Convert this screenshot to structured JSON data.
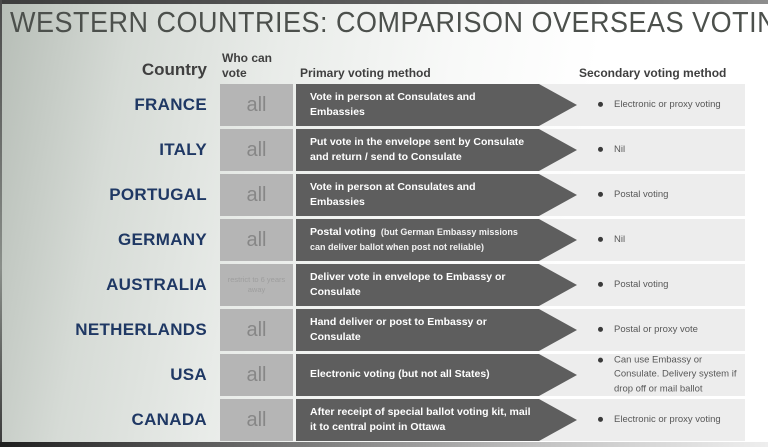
{
  "title": "WESTERN COUNTRIES: COMPARISON OVERSEAS VOTING",
  "columns": {
    "country": "Country",
    "who": "Who can vote",
    "primary": "Primary voting method",
    "secondary": "Secondary voting method"
  },
  "rows": [
    {
      "country": "FRANCE",
      "who": "all",
      "primary": "Vote in person at Consulates and Embassies",
      "secondary": "Electronic or proxy voting"
    },
    {
      "country": "ITALY",
      "who": "all",
      "primary": "Put vote in the envelope sent by Consulate and return / send to Consulate",
      "secondary": "Nil"
    },
    {
      "country": "PORTUGAL",
      "who": "all",
      "primary": "Vote in person at Consulates and Embassies",
      "secondary": "Postal voting"
    },
    {
      "country": "GERMANY",
      "who": "all",
      "primary": "Postal voting",
      "primary_note": "(but German Embassy missions can deliver ballot when post not reliable)",
      "secondary": "Nil"
    },
    {
      "country": "AUSTRALIA",
      "who": "restrict to 6 years away",
      "primary": "Deliver vote in envelope to Embassy or Consulate",
      "secondary": "Postal voting"
    },
    {
      "country": "NETHERLANDS",
      "who": "all",
      "primary": "Hand deliver or post to Embassy or Consulate",
      "secondary": "Postal or proxy vote"
    },
    {
      "country": "USA",
      "who": "all",
      "primary": "Electronic voting (but not all States)",
      "secondary": "Can use Embassy or Consulate.  Delivery system if drop off or mail ballot"
    },
    {
      "country": "CANADA",
      "who": "all",
      "primary": "After receipt of special ballot voting kit, mail it to central point in Ottawa",
      "secondary": "Electronic or proxy voting"
    }
  ],
  "colors": {
    "country_text": "#1f3864",
    "arrow": "#5e5e5e",
    "who_box": "#b5b5b5",
    "row_strip": "#ededed",
    "title_text": "#4c504c"
  }
}
